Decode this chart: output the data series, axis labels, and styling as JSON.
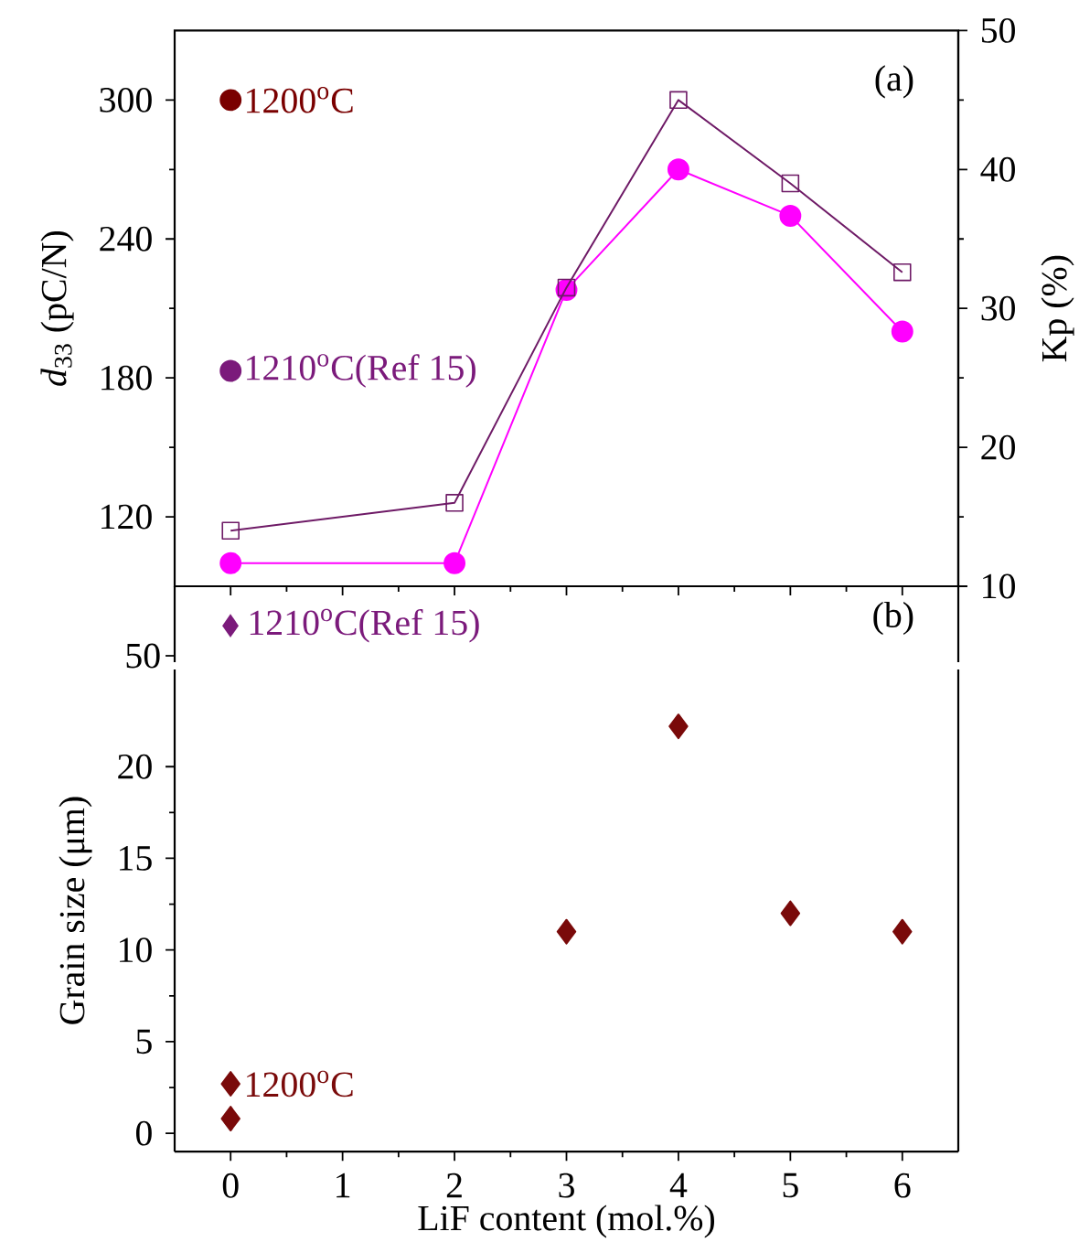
{
  "chart_data": [
    {
      "type": "line",
      "ylabel": "*d*$_{33}$ (pC/N)",
      "y2label": "Kp (%)",
      "annotations": [
        "(a)"
      ],
      "xlim": [
        -0.5,
        6.5
      ],
      "xticks": [
        0,
        1,
        2,
        3,
        4,
        5,
        6
      ],
      "ylim": [
        90,
        330
      ],
      "yticks": [
        120,
        180,
        240,
        300
      ],
      "y2lim": [
        10,
        50
      ],
      "y2ticks": [
        10,
        20,
        30,
        40,
        50
      ],
      "tick_labels": "y",
      "series": [
        {
          "color": "#ff00ff",
          "marker": "circle",
          "x": [
            0,
            2,
            3,
            4,
            5,
            6
          ],
          "values": [
            100,
            100,
            218,
            270,
            250,
            200
          ]
        },
        {
          "color": "#6e1a66",
          "marker": "square",
          "axis": "y2",
          "x": [
            0,
            2,
            3,
            4,
            5,
            6
          ],
          "values": [
            14,
            16,
            31.5,
            45,
            39,
            32.6
          ]
        },
        {
          "type": "scatter",
          "name": "1200$^{o}$C",
          "color": "#7a0000",
          "marker": "circle",
          "x": [
            0
          ],
          "values": [
            300
          ]
        },
        {
          "type": "scatter",
          "name": "1210$^{o}$C(Ref 15)",
          "color": "#7b1a7b",
          "marker": "circle",
          "x": [
            0
          ],
          "values": [
            183
          ]
        }
      ]
    },
    {
      "type": "other",
      "annotations": [
        "1210$^{o}$C(Ref 15)",
        "(b)",
        "50"
      ],
      "color": "#7b1a7b"
    },
    {
      "type": "scatter",
      "xlabel": "LiF content (mol.%)",
      "ylabel": "Grain size (μm)",
      "xlim": [
        -0.5,
        6.5
      ],
      "xticks": [
        0,
        1,
        2,
        3,
        4,
        5,
        6
      ],
      "ylim": [
        -1,
        25.3
      ],
      "yticks": [
        0,
        5,
        10,
        15,
        20
      ],
      "series": [
        {
          "color": "#7a0a0a",
          "marker": "diamond",
          "x": [
            0,
            3,
            4,
            5,
            6
          ],
          "values": [
            0.8,
            11,
            22.2,
            12,
            11
          ]
        },
        {
          "name": "1200$^{o}$C",
          "color": "#7a0a0a",
          "marker": "diamond",
          "x": [
            0
          ],
          "values": [
            2.7
          ]
        }
      ]
    }
  ]
}
